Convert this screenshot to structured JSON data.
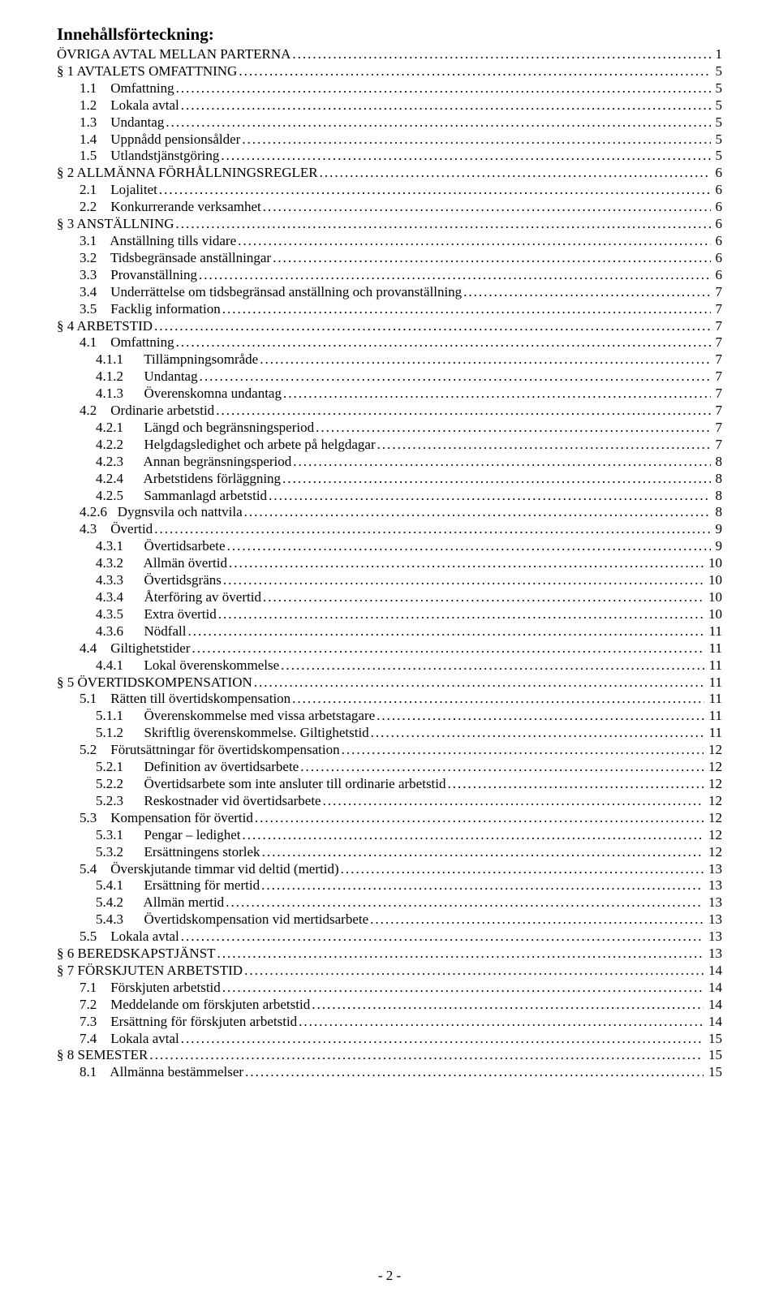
{
  "heading": "Innehållsförteckning:",
  "pageNumber": "- 2 -",
  "entries": [
    {
      "indent": 0,
      "label": "ÖVRIGA AVTAL MELLAN PARTERNA",
      "page": "1"
    },
    {
      "indent": 0,
      "label": "§ 1 AVTALETS OMFATTNING",
      "page": "5"
    },
    {
      "indent": 1,
      "label": "1.1    Omfattning",
      "page": "5"
    },
    {
      "indent": 1,
      "label": "1.2    Lokala avtal",
      "page": "5"
    },
    {
      "indent": 1,
      "label": "1.3    Undantag",
      "page": "5"
    },
    {
      "indent": 1,
      "label": "1.4    Uppnådd pensionsålder",
      "page": "5"
    },
    {
      "indent": 1,
      "label": "1.5    Utlandstjänstgöring",
      "page": "5"
    },
    {
      "indent": 0,
      "label": "§ 2 ALLMÄNNA FÖRHÅLLNINGSREGLER",
      "page": "6"
    },
    {
      "indent": 1,
      "label": "2.1    Lojalitet",
      "page": "6"
    },
    {
      "indent": 1,
      "label": "2.2    Konkurrerande verksamhet",
      "page": "6"
    },
    {
      "indent": 0,
      "label": "§ 3 ANSTÄLLNING",
      "page": "6"
    },
    {
      "indent": 1,
      "label": "3.1    Anställning tills vidare",
      "page": "6"
    },
    {
      "indent": 1,
      "label": "3.2    Tidsbegränsade anställningar",
      "page": "6"
    },
    {
      "indent": 1,
      "label": "3.3    Provanställning",
      "page": "6"
    },
    {
      "indent": 1,
      "label": "3.4    Underrättelse om tidsbegränsad anställning och provanställning",
      "page": "7"
    },
    {
      "indent": 1,
      "label": "3.5    Facklig information",
      "page": "7"
    },
    {
      "indent": 0,
      "label": "§ 4 ARBETSTID",
      "page": "7"
    },
    {
      "indent": 1,
      "label": "4.1    Omfattning",
      "page": "7"
    },
    {
      "indent": 2,
      "label": "4.1.1      Tillämpningsområde",
      "page": "7"
    },
    {
      "indent": 2,
      "label": "4.1.2      Undantag",
      "page": "7"
    },
    {
      "indent": 2,
      "label": "4.1.3      Överenskomna undantag",
      "page": "7"
    },
    {
      "indent": 1,
      "label": "4.2    Ordinarie arbetstid",
      "page": "7"
    },
    {
      "indent": 2,
      "label": "4.2.1      Längd och begränsningsperiod",
      "page": "7"
    },
    {
      "indent": 2,
      "label": "4.2.2      Helgdagsledighet och arbete på helgdagar",
      "page": "7"
    },
    {
      "indent": 2,
      "label": "4.2.3      Annan begränsningsperiod",
      "page": "8"
    },
    {
      "indent": 2,
      "label": "4.2.4      Arbetstidens förläggning",
      "page": "8"
    },
    {
      "indent": 2,
      "label": "4.2.5      Sammanlagd arbetstid",
      "page": "8"
    },
    {
      "indent": 1,
      "label": "4.2.6   Dygnsvila och nattvila",
      "page": "8"
    },
    {
      "indent": 1,
      "label": "4.3    Övertid",
      "page": "9"
    },
    {
      "indent": 2,
      "label": "4.3.1      Övertidsarbete",
      "page": "9"
    },
    {
      "indent": 2,
      "label": "4.3.2      Allmän övertid",
      "page": "10"
    },
    {
      "indent": 2,
      "label": "4.3.3      Övertidsgräns",
      "page": "10"
    },
    {
      "indent": 2,
      "label": "4.3.4      Återföring av övertid",
      "page": "10"
    },
    {
      "indent": 2,
      "label": "4.3.5      Extra övertid",
      "page": "10"
    },
    {
      "indent": 2,
      "label": "4.3.6      Nödfall",
      "page": "11"
    },
    {
      "indent": 1,
      "label": "4.4    Giltighetstider",
      "page": "11"
    },
    {
      "indent": 2,
      "label": "4.4.1      Lokal överenskommelse",
      "page": "11"
    },
    {
      "indent": 0,
      "label": "§ 5 ÖVERTIDSKOMPENSATION",
      "page": "11"
    },
    {
      "indent": 1,
      "label": "5.1    Rätten till övertidskompensation",
      "page": "11"
    },
    {
      "indent": 2,
      "label": "5.1.1      Överenskommelse med vissa arbetstagare",
      "page": "11"
    },
    {
      "indent": 2,
      "label": "5.1.2      Skriftlig överenskommelse. Giltighetstid",
      "page": "11"
    },
    {
      "indent": 1,
      "label": "5.2    Förutsättningar för övertidskompensation",
      "page": "12"
    },
    {
      "indent": 2,
      "label": "5.2.1      Definition av övertidsarbete",
      "page": "12"
    },
    {
      "indent": 2,
      "label": "5.2.2      Övertidsarbete som inte ansluter till ordinarie arbetstid",
      "page": "12"
    },
    {
      "indent": 2,
      "label": "5.2.3      Reskostnader vid övertidsarbete",
      "page": "12"
    },
    {
      "indent": 1,
      "label": "5.3    Kompensation för övertid",
      "page": "12"
    },
    {
      "indent": 2,
      "label": "5.3.1      Pengar – ledighet",
      "page": "12"
    },
    {
      "indent": 2,
      "label": "5.3.2      Ersättningens storlek",
      "page": "12"
    },
    {
      "indent": 1,
      "label": "5.4    Överskjutande timmar vid deltid (mertid)",
      "page": "13"
    },
    {
      "indent": 2,
      "label": "5.4.1      Ersättning för mertid",
      "page": "13"
    },
    {
      "indent": 2,
      "label": "5.4.2      Allmän mertid",
      "page": "13"
    },
    {
      "indent": 2,
      "label": "5.4.3      Övertidskompensation vid mertidsarbete",
      "page": "13"
    },
    {
      "indent": 1,
      "label": "5.5    Lokala avtal",
      "page": "13"
    },
    {
      "indent": 0,
      "label": "§ 6 BEREDSKAPSTJÄNST",
      "page": "13"
    },
    {
      "indent": 0,
      "label": "§ 7 FÖRSKJUTEN ARBETSTID",
      "page": "14"
    },
    {
      "indent": 1,
      "label": "7.1    Förskjuten arbetstid",
      "page": "14"
    },
    {
      "indent": 1,
      "label": "7.2    Meddelande om förskjuten arbetstid",
      "page": "14"
    },
    {
      "indent": 1,
      "label": "7.3    Ersättning för förskjuten arbetstid",
      "page": "14"
    },
    {
      "indent": 1,
      "label": "7.4    Lokala avtal",
      "page": "15"
    },
    {
      "indent": 0,
      "label": "§ 8 SEMESTER",
      "page": "15"
    },
    {
      "indent": 1,
      "label": "8.1    Allmänna bestämmelser",
      "page": "15"
    }
  ]
}
